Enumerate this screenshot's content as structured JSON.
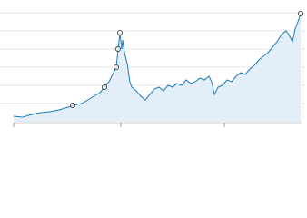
{
  "chart_data": {
    "type": "area",
    "x": [
      0,
      10,
      20,
      30,
      40,
      50,
      60,
      65,
      75,
      85,
      95,
      100,
      105,
      110,
      113,
      114,
      115,
      117,
      119,
      120,
      122,
      125,
      128,
      130,
      135,
      140,
      145,
      150,
      155,
      160,
      165,
      170,
      175,
      180,
      185,
      190,
      195,
      200,
      205,
      210,
      215,
      218,
      221,
      225,
      230,
      235,
      240,
      245,
      250,
      255,
      260,
      265,
      270,
      275,
      280,
      285,
      290,
      295,
      300,
      303,
      307,
      310,
      313,
      316
    ],
    "values": [
      0.3,
      0.25,
      0.4,
      0.5,
      0.55,
      0.65,
      0.8,
      0.9,
      1.0,
      1.3,
      1.6,
      1.9,
      2.2,
      2.7,
      3.0,
      3.5,
      4.0,
      4.9,
      4.0,
      4.5,
      3.8,
      3.2,
      2.2,
      1.9,
      1.7,
      1.4,
      1.2,
      1.5,
      1.8,
      1.9,
      1.7,
      2.0,
      1.9,
      2.1,
      2.0,
      2.3,
      2.1,
      2.2,
      2.4,
      2.3,
      2.5,
      2.2,
      1.5,
      1.9,
      2.0,
      2.3,
      2.2,
      2.5,
      2.7,
      2.6,
      2.9,
      3.1,
      3.4,
      3.6,
      3.8,
      4.1,
      4.4,
      4.8,
      5.0,
      4.8,
      4.4,
      5.1,
      5.5,
      5.95
    ],
    "markers": {
      "x": [
        65,
        100,
        113,
        115,
        117,
        316
      ],
      "values": [
        0.9,
        1.9,
        3.0,
        4.0,
        4.9,
        5.95
      ]
    },
    "color": "#1a7fb5",
    "fill": "#e3eef9",
    "xlim": [
      0,
      317
    ],
    "xticks": [
      0,
      118,
      232
    ],
    "ylim": [
      0,
      6
    ],
    "yticks": [
      1,
      2,
      3,
      4,
      5,
      6
    ],
    "grid": true
  }
}
